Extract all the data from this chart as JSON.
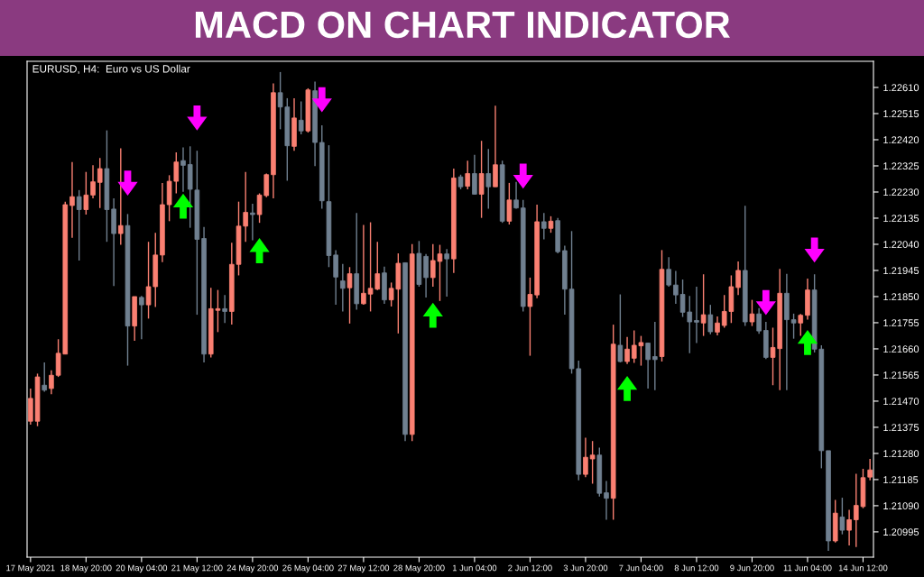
{
  "chart_data": {
    "type": "candlestick",
    "title": "MACD ON CHART INDICATOR",
    "subtitle": "EURUSD, H4:  Euro vs US Dollar",
    "categories": [
      "17 May 2021",
      null,
      null,
      null,
      null,
      null,
      null,
      null,
      "18 May 20:00",
      null,
      null,
      null,
      null,
      null,
      null,
      null,
      "20 May 04:00",
      null,
      null,
      null,
      null,
      null,
      null,
      null,
      "21 May 12:00",
      null,
      null,
      null,
      null,
      null,
      null,
      null,
      "24 May 20:00",
      null,
      null,
      null,
      null,
      null,
      null,
      null,
      "26 May 04:00",
      null,
      null,
      null,
      null,
      null,
      null,
      null,
      "27 May 12:00",
      null,
      null,
      null,
      null,
      null,
      null,
      null,
      "28 May 20:00",
      null,
      null,
      null,
      null,
      null,
      null,
      null,
      "1 Jun 04:00",
      null,
      null,
      null,
      null,
      null,
      null,
      null,
      "2 Jun 12:00",
      null,
      null,
      null,
      null,
      null,
      null,
      null,
      "3 Jun 20:00",
      null,
      null,
      null,
      null,
      null,
      null,
      null,
      "7 Jun 04:00",
      null,
      null,
      null,
      null,
      null,
      null,
      null,
      "8 Jun 12:00",
      null,
      null,
      null,
      null,
      null,
      null,
      null,
      "9 Jun 20:00",
      null,
      null,
      null,
      null,
      null,
      null,
      null,
      "11 Jun 04:00",
      null,
      null,
      null,
      null,
      null,
      null,
      null,
      "14 Jun 12:00",
      null
    ],
    "ohlc": [
      [
        1.21397,
        1.21516,
        1.21385,
        1.2148
      ],
      [
        1.21397,
        1.2157,
        1.21379,
        1.21558
      ],
      [
        1.21528,
        1.21611,
        1.21504,
        1.2151
      ],
      [
        1.21516,
        1.21582,
        1.21495,
        1.21564
      ],
      [
        1.21564,
        1.21695,
        1.21558,
        1.21644
      ],
      [
        1.21641,
        1.22195,
        1.21641,
        1.22184
      ],
      [
        1.22181,
        1.22339,
        1.22064,
        1.22213
      ],
      [
        1.22213,
        1.22237,
        1.21981,
        1.22166
      ],
      [
        1.22166,
        1.22303,
        1.22148,
        1.22219
      ],
      [
        1.22219,
        1.22327,
        1.22207,
        1.22267
      ],
      [
        1.22265,
        1.22354,
        1.22172,
        1.22315
      ],
      [
        1.22315,
        1.22454,
        1.22049,
        1.22166
      ],
      [
        1.22168,
        1.22207,
        1.21888,
        1.22079
      ],
      [
        1.22079,
        1.22389,
        1.22038,
        1.22108
      ],
      [
        1.22108,
        1.2215,
        1.21599,
        1.21743
      ],
      [
        1.21743,
        1.2185,
        1.21689,
        1.2185
      ],
      [
        1.21847,
        1.21852,
        1.21695,
        1.2182
      ],
      [
        1.2182,
        1.22049,
        1.2177,
        1.21886
      ],
      [
        1.21886,
        1.22082,
        1.21812,
        1.22001
      ],
      [
        1.22001,
        1.22263,
        1.21975,
        1.22184
      ],
      [
        1.22184,
        1.22291,
        1.22124,
        1.22269
      ],
      [
        1.22269,
        1.22374,
        1.22225,
        1.22339
      ],
      [
        1.22344,
        1.22392,
        1.22231,
        1.22327
      ],
      [
        1.2233,
        1.22396,
        1.221,
        1.2224
      ],
      [
        1.22237,
        1.2238,
        1.21784,
        1.22058
      ],
      [
        1.22061,
        1.22103,
        1.21611,
        1.21641
      ],
      [
        1.21641,
        1.21882,
        1.21629,
        1.21806
      ],
      [
        1.218,
        1.21874,
        1.21721,
        1.21806
      ],
      [
        1.21806,
        1.21856,
        1.21754,
        1.21796
      ],
      [
        1.21796,
        1.22046,
        1.21748,
        1.21967
      ],
      [
        1.21967,
        1.22195,
        1.21927,
        1.22106
      ],
      [
        1.22106,
        1.22303,
        1.22049,
        1.22156
      ],
      [
        1.22154,
        1.22187,
        1.22055,
        1.22148
      ],
      [
        1.22148,
        1.22225,
        1.22118,
        1.22219
      ],
      [
        1.22217,
        1.22297,
        1.22211,
        1.22293
      ],
      [
        1.22293,
        1.22625,
        1.22207,
        1.22591
      ],
      [
        1.22591,
        1.22666,
        1.22458,
        1.22539
      ],
      [
        1.22539,
        1.22571,
        1.22271,
        1.22398
      ],
      [
        1.22396,
        1.22571,
        1.2238,
        1.22499
      ],
      [
        1.22491,
        1.22559,
        1.2244,
        1.22452
      ],
      [
        1.22452,
        1.22607,
        1.22446,
        1.22601
      ],
      [
        1.22598,
        1.22631,
        1.22324,
        1.2241
      ],
      [
        1.2241,
        1.22472,
        1.22169,
        1.22198
      ],
      [
        1.22195,
        1.224,
        1.21957,
        1.21999
      ],
      [
        1.22001,
        1.22019,
        1.2182,
        1.21921
      ],
      [
        1.21907,
        1.21969,
        1.21796,
        1.2188
      ],
      [
        1.21882,
        1.21957,
        1.21752,
        1.21933
      ],
      [
        1.21933,
        1.22154,
        1.21802,
        1.21824
      ],
      [
        1.21824,
        1.2211,
        1.2182,
        1.21862
      ],
      [
        1.21859,
        1.2212,
        1.21796,
        1.2188
      ],
      [
        1.21877,
        1.22049,
        1.21874,
        1.21933
      ],
      [
        1.21936,
        1.21959,
        1.21824,
        1.21838
      ],
      [
        1.21838,
        1.21901,
        1.21814,
        1.2188
      ],
      [
        1.21877,
        1.22007,
        1.21716,
        1.21971
      ],
      [
        1.21973,
        1.21973,
        1.21325,
        1.21349
      ],
      [
        1.21349,
        1.22041,
        1.21325,
        1.22005
      ],
      [
        1.22007,
        1.22052,
        1.21886,
        1.21894
      ],
      [
        1.21996,
        1.22005,
        1.21847,
        1.21919
      ],
      [
        1.21919,
        1.22041,
        1.21886,
        1.21981
      ],
      [
        1.21978,
        1.22038,
        1.21834,
        1.22005
      ],
      [
        1.22005,
        1.22023,
        1.2185,
        1.21987
      ],
      [
        1.21987,
        1.22315,
        1.21936,
        1.22281
      ],
      [
        1.22285,
        1.22293,
        1.2224,
        1.22249
      ],
      [
        1.22251,
        1.22344,
        1.2224,
        1.22297
      ],
      [
        1.22297,
        1.22365,
        1.22222,
        1.22222
      ],
      [
        1.22222,
        1.22416,
        1.22136,
        1.22297
      ],
      [
        1.22297,
        1.22386,
        1.22169,
        1.22249
      ],
      [
        1.22249,
        1.22544,
        1.22249,
        1.22329
      ],
      [
        1.22329,
        1.22344,
        1.22118,
        1.22124
      ],
      [
        1.22124,
        1.22263,
        1.22112,
        1.22201
      ],
      [
        1.22201,
        1.22267,
        1.22169,
        1.22172
      ],
      [
        1.22172,
        1.22201,
        1.21796,
        1.21814
      ],
      [
        1.21814,
        1.21919,
        1.21635,
        1.21858
      ],
      [
        1.21856,
        1.22184,
        1.21844,
        1.22122
      ],
      [
        1.22122,
        1.22154,
        1.22058,
        1.22098
      ],
      [
        1.22098,
        1.22142,
        1.22082,
        1.22124
      ],
      [
        1.22126,
        1.22136,
        1.22007,
        1.22013
      ],
      [
        1.22017,
        1.22035,
        1.21784,
        1.21877
      ],
      [
        1.21877,
        1.22088,
        1.2157,
        1.21588
      ],
      [
        1.21588,
        1.21617,
        1.21182,
        1.21204
      ],
      [
        1.21204,
        1.21337,
        1.21194,
        1.21266
      ],
      [
        1.2126,
        1.21325,
        1.2117,
        1.21274
      ],
      [
        1.21274,
        1.21301,
        1.21123,
        1.21135
      ],
      [
        1.21137,
        1.2118,
        1.21039,
        1.21117
      ],
      [
        1.21117,
        1.21748,
        1.21039,
        1.21677
      ],
      [
        1.21673,
        1.21858,
        1.21611,
        1.21614
      ],
      [
        1.21614,
        1.21703,
        1.21605,
        1.21659
      ],
      [
        1.21626,
        1.21727,
        1.21609,
        1.21673
      ],
      [
        1.21671,
        1.21707,
        1.21599,
        1.21683
      ],
      [
        1.21681,
        1.21683,
        1.21516,
        1.21621
      ],
      [
        1.21632,
        1.21758,
        1.2151,
        1.21621
      ],
      [
        1.21632,
        1.22019,
        1.21614,
        1.21949
      ],
      [
        1.21949,
        1.21993,
        1.21886,
        1.21892
      ],
      [
        1.21892,
        1.21943,
        1.21824,
        1.21856
      ],
      [
        1.21858,
        1.21912,
        1.21776,
        1.21793
      ],
      [
        1.21794,
        1.21852,
        1.21644,
        1.21758
      ],
      [
        1.21763,
        1.21886,
        1.21681,
        1.21757
      ],
      [
        1.21754,
        1.21931,
        1.21707,
        1.21784
      ],
      [
        1.21784,
        1.2182,
        1.21713,
        1.21722
      ],
      [
        1.21721,
        1.21778,
        1.21709,
        1.21754
      ],
      [
        1.21745,
        1.21856,
        1.21737,
        1.21796
      ],
      [
        1.21796,
        1.21927,
        1.21754,
        1.21886
      ],
      [
        1.21883,
        1.21978,
        1.21856,
        1.21945
      ],
      [
        1.21945,
        1.2218,
        1.21743,
        1.21758
      ],
      [
        1.21758,
        1.21838,
        1.21743,
        1.21787
      ],
      [
        1.21787,
        1.21808,
        1.21715,
        1.21725
      ],
      [
        1.21727,
        1.21758,
        1.21623,
        1.21629
      ],
      [
        1.21629,
        1.21737,
        1.21528,
        1.21665
      ],
      [
        1.21661,
        1.21951,
        1.2151,
        1.21862
      ],
      [
        1.21862,
        1.21933,
        1.2151,
        1.21766
      ],
      [
        1.21766,
        1.21788,
        1.21697,
        1.21754
      ],
      [
        1.21754,
        1.21787,
        1.21707,
        1.21782
      ],
      [
        1.21782,
        1.21915,
        1.21766,
        1.21874
      ],
      [
        1.21874,
        1.21931,
        1.21647,
        1.21659
      ],
      [
        1.21659,
        1.21673,
        1.21226,
        1.2129
      ],
      [
        1.2129,
        1.2129,
        1.20926,
        1.20962
      ],
      [
        1.20962,
        1.21111,
        1.20956,
        1.21063
      ],
      [
        1.21049,
        1.21119,
        1.20986,
        1.21001
      ],
      [
        1.21001,
        1.21075,
        1.20946,
        1.21039
      ],
      [
        1.21039,
        1.21206,
        1.2094,
        1.21091
      ],
      [
        1.21087,
        1.21224,
        1.21081,
        1.21192
      ],
      [
        1.21194,
        1.2126,
        1.21182,
        1.2122
      ]
    ],
    "colors": [
      "#fa8072",
      "#fa8072",
      "#708090",
      "#fa8072",
      "#fa8072",
      "#fa8072",
      "#fa8072",
      "#708090",
      "#fa8072",
      "#fa8072",
      "#fa8072",
      "#708090",
      "#708090",
      "#fa8072",
      "#708090",
      "#fa8072",
      "#708090",
      "#fa8072",
      "#fa8072",
      "#fa8072",
      "#fa8072",
      "#fa8072",
      "#708090",
      "#708090",
      "#708090",
      "#708090",
      "#fa8072",
      "#fa8072",
      "#708090",
      "#fa8072",
      "#fa8072",
      "#fa8072",
      "#708090",
      "#fa8072",
      "#fa8072",
      "#fa8072",
      "#708090",
      "#708090",
      "#fa8072",
      "#708090",
      "#fa8072",
      "#708090",
      "#708090",
      "#708090",
      "#708090",
      "#708090",
      "#fa8072",
      "#708090",
      "#fa8072",
      "#fa8072",
      "#fa8072",
      "#708090",
      "#fa8072",
      "#fa8072",
      "#708090",
      "#fa8072",
      "#708090",
      "#708090",
      "#fa8072",
      "#fa8072",
      "#708090",
      "#fa8072",
      "#708090",
      "#fa8072",
      "#708090",
      "#fa8072",
      "#708090",
      "#fa8072",
      "#708090",
      "#fa8072",
      "#708090",
      "#708090",
      "#fa8072",
      "#fa8072",
      "#708090",
      "#fa8072",
      "#708090",
      "#708090",
      "#708090",
      "#708090",
      "#fa8072",
      "#fa8072",
      "#708090",
      "#708090",
      "#fa8072",
      "#708090",
      "#fa8072",
      "#fa8072",
      "#fa8072",
      "#708090",
      "#708090",
      "#fa8072",
      "#708090",
      "#708090",
      "#708090",
      "#708090",
      "#708090",
      "#fa8072",
      "#708090",
      "#fa8072",
      "#fa8072",
      "#fa8072",
      "#fa8072",
      "#708090",
      "#fa8072",
      "#708090",
      "#708090",
      "#fa8072",
      "#fa8072",
      "#708090",
      "#708090",
      "#fa8072",
      "#fa8072",
      "#708090",
      "#708090",
      "#708090",
      "#fa8072",
      "#708090",
      "#fa8072",
      "#fa8072",
      "#fa8072",
      "#fa8072"
    ],
    "series": [
      {
        "type": "scatter",
        "color": "#ff00ff",
        "values": [
          null,
          null,
          null,
          null,
          null,
          null,
          null,
          null,
          null,
          null,
          null,
          null,
          null,
          null,
          1.22262,
          null,
          null,
          null,
          null,
          null,
          null,
          null,
          null,
          null,
          1.22499,
          null,
          null,
          null,
          null,
          null,
          null,
          null,
          null,
          null,
          null,
          null,
          null,
          null,
          null,
          null,
          null,
          null,
          1.22565,
          null,
          null,
          null,
          null,
          null,
          null,
          null,
          null,
          null,
          null,
          null,
          null,
          null,
          null,
          null,
          null,
          null,
          null,
          null,
          null,
          null,
          null,
          null,
          null,
          null,
          null,
          null,
          null,
          1.22288,
          null,
          null,
          null,
          null,
          null,
          null,
          null,
          null,
          null,
          null,
          null,
          null,
          null,
          null,
          null,
          null,
          null,
          null,
          null,
          null,
          null,
          null,
          null,
          null,
          null,
          null,
          null,
          null,
          null,
          null,
          null,
          null,
          null,
          null,
          1.21828,
          null,
          null,
          null,
          null,
          null,
          null,
          1.22019,
          null,
          null,
          null,
          null,
          null,
          null,
          null,
          null
        ]
      },
      {
        "type": "scatter",
        "color": "#00ff00",
        "values": [
          null,
          null,
          null,
          null,
          null,
          null,
          null,
          null,
          null,
          null,
          null,
          null,
          null,
          null,
          null,
          null,
          null,
          null,
          null,
          null,
          null,
          null,
          1.22179,
          null,
          null,
          null,
          null,
          null,
          null,
          null,
          null,
          null,
          null,
          1.22017,
          null,
          null,
          null,
          null,
          null,
          null,
          null,
          null,
          null,
          null,
          null,
          null,
          null,
          null,
          null,
          null,
          null,
          null,
          null,
          null,
          null,
          null,
          null,
          null,
          1.21782,
          null,
          null,
          null,
          null,
          null,
          null,
          null,
          null,
          null,
          null,
          null,
          null,
          null,
          null,
          null,
          null,
          null,
          null,
          null,
          null,
          null,
          null,
          null,
          null,
          null,
          null,
          null,
          1.21516,
          null,
          null,
          null,
          null,
          null,
          null,
          null,
          null,
          null,
          null,
          null,
          null,
          null,
          null,
          null,
          null,
          null,
          null,
          null,
          null,
          null,
          null,
          null,
          null,
          null,
          1.21683,
          null,
          null,
          null,
          null,
          null,
          null,
          null,
          null,
          null
        ]
      }
    ],
    "ylim": [
      1.20903,
      1.22705
    ],
    "yticks": [
      1.20995,
      {
        "value": 1.2109,
        "label": "1.21090"
      },
      1.21185,
      {
        "value": 1.2128,
        "label": "1.21280"
      },
      1.21375,
      {
        "value": 1.2147,
        "label": "1.21470"
      },
      1.21565,
      {
        "value": 1.2166,
        "label": "1.21660"
      },
      1.21755,
      {
        "value": 1.2185,
        "label": "1.21850"
      },
      1.21945,
      {
        "value": 1.2204,
        "label": "1.22040"
      },
      1.22135,
      {
        "value": 1.2223,
        "label": "1.22230"
      },
      1.22325,
      {
        "value": 1.2242,
        "label": "1.22420"
      },
      1.22515,
      {
        "value": 1.2261,
        "label": "1.22610"
      }
    ]
  }
}
